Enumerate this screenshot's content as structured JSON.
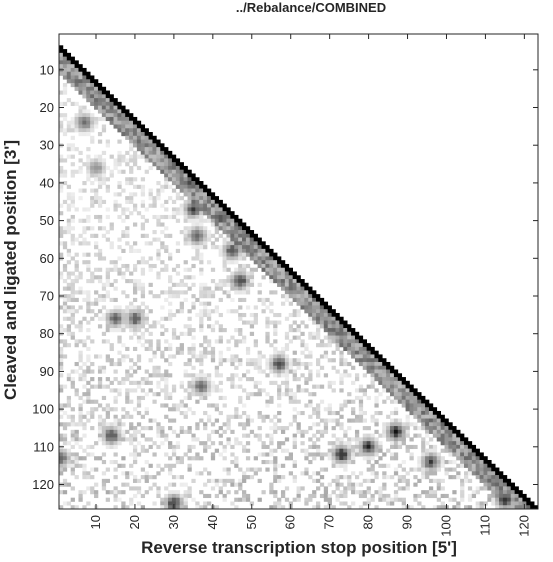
{
  "chart_data": {
    "type": "heatmap",
    "title": "../Rebalance/COMBINED",
    "xlabel": "Reverse transcription stop position [5']",
    "ylabel": "Cleaved and ligated position [3']",
    "x_ticks": [
      10,
      20,
      30,
      40,
      50,
      60,
      70,
      80,
      90,
      100,
      110,
      120
    ],
    "y_ticks": [
      10,
      20,
      30,
      40,
      50,
      60,
      70,
      80,
      90,
      100,
      110,
      120
    ],
    "xlim": [
      0.5,
      123.5
    ],
    "ylim": [
      0.5,
      126.5
    ],
    "y_direction": "reverse",
    "colormap": "gray-inverted",
    "grid": false,
    "colorbar": false,
    "diagonal": "black cells along y = x + 4 (upper-right triangle is empty)",
    "hotspots": [
      {
        "x": 7,
        "y": 24,
        "level": 0.7
      },
      {
        "x": 10,
        "y": 36,
        "level": 0.5
      },
      {
        "x": 15,
        "y": 76,
        "level": 0.7
      },
      {
        "x": 20,
        "y": 76,
        "level": 0.75
      },
      {
        "x": 14,
        "y": 107,
        "level": 0.8
      },
      {
        "x": 30,
        "y": 125,
        "level": 0.85
      },
      {
        "x": 34,
        "y": 40,
        "level": 0.75
      },
      {
        "x": 35,
        "y": 47,
        "level": 0.8
      },
      {
        "x": 36,
        "y": 54,
        "level": 0.75
      },
      {
        "x": 42,
        "y": 49,
        "level": 0.85
      },
      {
        "x": 45,
        "y": 58,
        "level": 0.8
      },
      {
        "x": 47,
        "y": 66,
        "level": 0.85
      },
      {
        "x": 37,
        "y": 94,
        "level": 0.7
      },
      {
        "x": 57,
        "y": 88,
        "level": 0.8
      },
      {
        "x": 73,
        "y": 112,
        "level": 0.95
      },
      {
        "x": 80,
        "y": 110,
        "level": 0.9
      },
      {
        "x": 87,
        "y": 106,
        "level": 0.95
      },
      {
        "x": 96,
        "y": 114,
        "level": 0.8
      },
      {
        "x": 115,
        "y": 124,
        "level": 0.95
      },
      {
        "x": 1,
        "y": 113,
        "level": 0.7
      }
    ]
  }
}
